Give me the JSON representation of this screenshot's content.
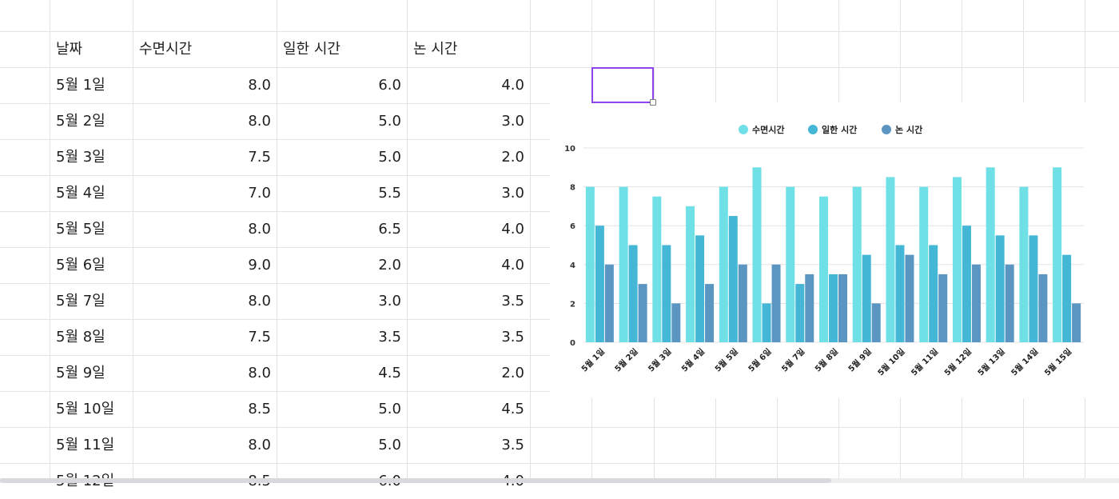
{
  "sheet": {
    "headers": [
      "날짜",
      "수면시간",
      "일한 시간",
      "논 시간"
    ],
    "rows": [
      [
        "5월 1일",
        "8.0",
        "6.0",
        "4.0"
      ],
      [
        "5월 2일",
        "8.0",
        "5.0",
        "3.0"
      ],
      [
        "5월 3일",
        "7.5",
        "5.0",
        "2.0"
      ],
      [
        "5월 4일",
        "7.0",
        "5.5",
        "3.0"
      ],
      [
        "5월 5일",
        "8.0",
        "6.5",
        "4.0"
      ],
      [
        "5월 6일",
        "9.0",
        "2.0",
        "4.0"
      ],
      [
        "5월 7일",
        "8.0",
        "3.0",
        "3.5"
      ],
      [
        "5월 8일",
        "7.5",
        "3.5",
        "3.5"
      ],
      [
        "5월 9일",
        "8.0",
        "4.5",
        "2.0"
      ],
      [
        "5월 10일",
        "8.5",
        "5.0",
        "4.5"
      ],
      [
        "5월 11일",
        "8.0",
        "5.0",
        "3.5"
      ],
      [
        "5월 12일",
        "8.5",
        "6.0",
        "4.0"
      ]
    ]
  },
  "chart_data": {
    "type": "bar",
    "categories": [
      "5월 1일",
      "5월 2일",
      "5월 3일",
      "5월 4일",
      "5월 5일",
      "5월 6일",
      "5월 7일",
      "5월 8일",
      "5월 9일",
      "5월 10일",
      "5월 11일",
      "5월 12일",
      "5월 13일",
      "5월 14일",
      "5월 15일"
    ],
    "series": [
      {
        "name": "수면시간",
        "color": "#6ee0e6",
        "values": [
          8,
          8,
          7.5,
          7,
          8,
          9,
          8,
          7.5,
          8,
          8.5,
          8,
          8.5,
          9,
          8,
          9
        ]
      },
      {
        "name": "일한 시간",
        "color": "#45b7d6",
        "values": [
          6,
          5,
          5,
          5.5,
          6.5,
          2,
          3,
          3.5,
          4.5,
          5,
          5,
          6,
          5.5,
          5.5,
          4.5
        ]
      },
      {
        "name": "논 시간",
        "color": "#5b96c2",
        "values": [
          4,
          3,
          2,
          3,
          4,
          4,
          3.5,
          3.5,
          2,
          4.5,
          3.5,
          4,
          4,
          3.5,
          2
        ]
      }
    ],
    "ylim": [
      0,
      10
    ],
    "yticks": [
      0,
      2,
      4,
      6,
      8,
      10
    ],
    "grid": true,
    "legend": "top-center",
    "title": "",
    "xlabel": "",
    "ylabel": ""
  }
}
